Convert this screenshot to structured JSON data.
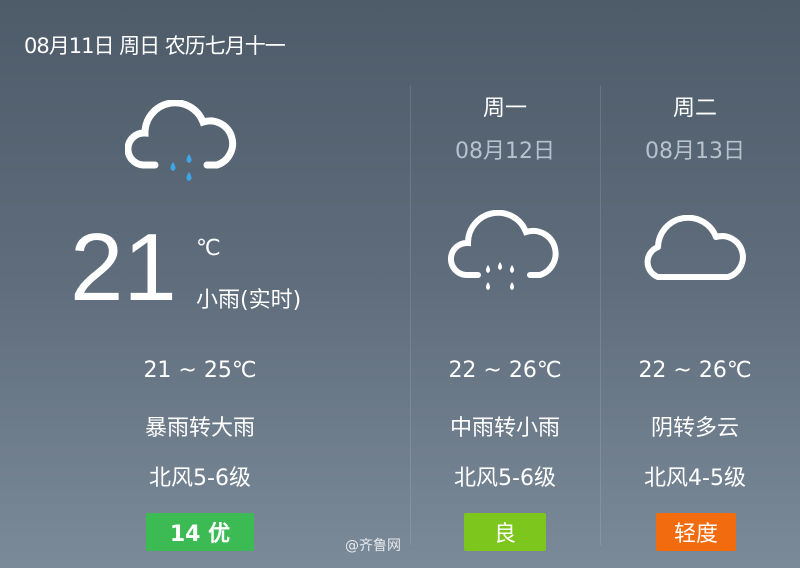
{
  "header": {
    "date": "08月11日 周日 农历七月十一"
  },
  "today": {
    "icon": "cloud-rain-icon",
    "temp": "21",
    "unit": "℃",
    "condition": "小雨(实时)",
    "range": "21 ~ 25℃",
    "forecast": "暴雨转大雨",
    "wind": "北风5-6级",
    "aqi": "14 优",
    "aqi_color": "#3cba54"
  },
  "days": [
    {
      "weekday": "周一",
      "date": "08月12日",
      "icon": "cloud-rain-icon",
      "range": "22 ~ 26℃",
      "forecast": "中雨转小雨",
      "wind": "北风5-6级",
      "aqi": "良",
      "aqi_color": "#7cc61e"
    },
    {
      "weekday": "周二",
      "date": "08月13日",
      "icon": "cloud-icon",
      "range": "22 ~ 26℃",
      "forecast": "阴转多云",
      "wind": "北风4-5级",
      "aqi": "轻度",
      "aqi_color": "#f26b0f"
    }
  ],
  "watermark": "@齐鲁网"
}
